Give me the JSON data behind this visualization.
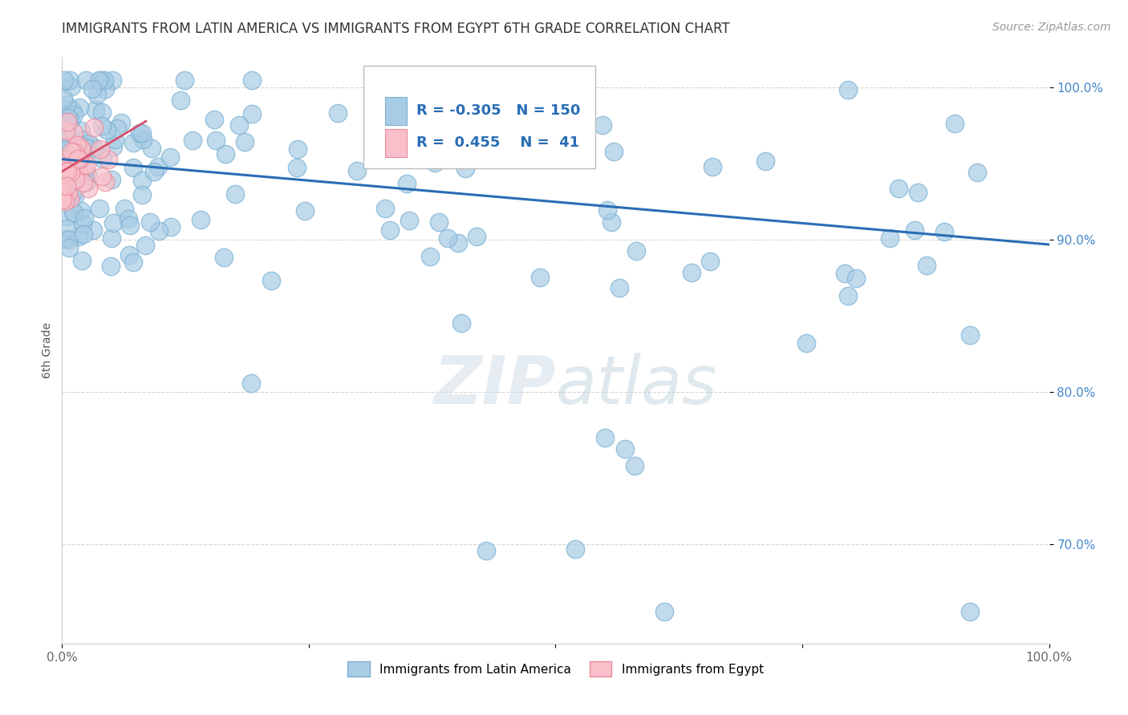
{
  "title": "IMMIGRANTS FROM LATIN AMERICA VS IMMIGRANTS FROM EGYPT 6TH GRADE CORRELATION CHART",
  "source": "Source: ZipAtlas.com",
  "ylabel": "6th Grade",
  "legend_r_blue": "-0.305",
  "legend_n_blue": "150",
  "legend_r_pink": "0.455",
  "legend_n_pink": "41",
  "legend_label_blue": "Immigrants from Latin America",
  "legend_label_pink": "Immigrants from Egypt",
  "blue_color": "#a8cce4",
  "blue_edge_color": "#7ab0d4",
  "pink_color": "#f9c0cb",
  "pink_edge_color": "#e88a9a",
  "blue_line_color": "#2a6db5",
  "pink_line_color": "#d94f6a",
  "background_color": "#ffffff",
  "grid_color": "#cccccc",
  "title_color": "#333333",
  "ytick_color": "#4488cc",
  "blue_trend_x": [
    0.0,
    1.0
  ],
  "blue_trend_y": [
    0.953,
    0.897
  ],
  "pink_trend_x": [
    0.0,
    0.085
  ],
  "pink_trend_y": [
    0.945,
    0.978
  ],
  "xlim": [
    0.0,
    1.0
  ],
  "ylim": [
    0.635,
    1.02
  ],
  "yticks": [
    0.7,
    0.8,
    0.9,
    1.0
  ],
  "ytick_labels": [
    "70.0%",
    "80.0%",
    "90.0%",
    "100.0%"
  ]
}
